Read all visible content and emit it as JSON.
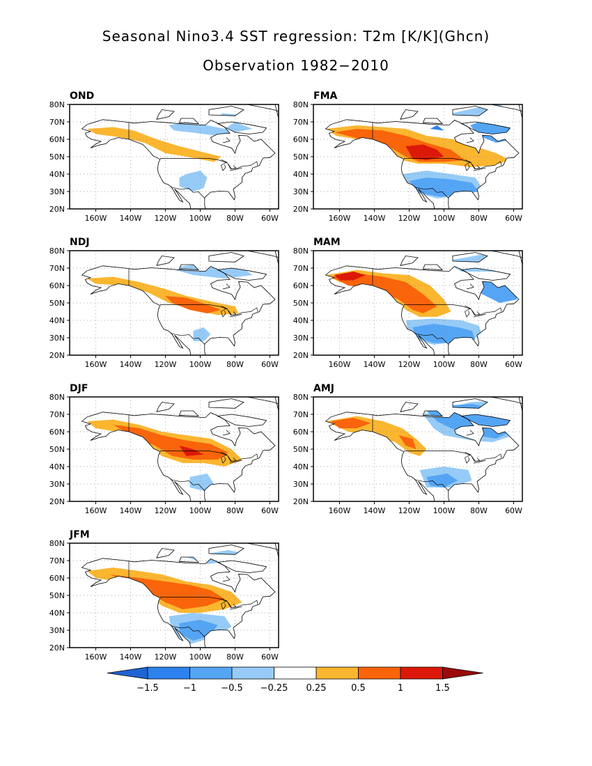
{
  "title_line1": "Seasonal Nino3.4 SST regression: T2m [K/K](Ghcn)",
  "title_line2": "Observation 1982−2010",
  "lat_ticks": [
    "20N",
    "30N",
    "40N",
    "50N",
    "60N",
    "70N",
    "80N"
  ],
  "lon_ticks": [
    "160W",
    "140W",
    "120W",
    "100W",
    "80W",
    "60W"
  ],
  "colorbar": {
    "labels": [
      "−1.5",
      "−1",
      "−0.5",
      "−0.25",
      "0.25",
      "0.5",
      "1",
      "1.5"
    ],
    "colors": [
      "#1e64d2",
      "#2d82ee",
      "#55a5f5",
      "#96cbf7",
      "#ffffff",
      "#fbb630",
      "#fa640a",
      "#dc1908",
      "#9b0a0a"
    ]
  },
  "chart_data": {
    "type": "heatmap",
    "colorbar_levels": [
      -1.5,
      -1,
      -0.5,
      -0.25,
      0.25,
      0.5,
      1,
      1.5
    ],
    "lon_range": [
      "175W",
      "55W"
    ],
    "lat_range": [
      "20N",
      "80N"
    ],
    "panels": [
      {
        "season": "OND",
        "summary": {
          "warm_northwest": "0.25 to 0.5",
          "cold_southern_plains": "-0.25 to -0.5",
          "cold_northern_canada": "-0.25 to -0.5"
        }
      },
      {
        "season": "FMA",
        "summary": {
          "warm_western_canada": "0.5 to 1.5",
          "cold_southern_us": "-0.25 to -1",
          "cold_northeast_canada": "-0.25 to -1"
        }
      },
      {
        "season": "NDJ",
        "summary": {
          "warm_central_canada_great_lakes": "0.25 to 1",
          "cold_southern_us": "-0.25 to -0.5"
        }
      },
      {
        "season": "MAM",
        "summary": {
          "warm_alaska_western_canada": "0.5 to 1.5",
          "cold_southern_us": "-0.25 to -1",
          "cold_labrador": "-0.25 to -1"
        }
      },
      {
        "season": "DJF",
        "summary": {
          "warm_central_canada": "0.5 to 1.5",
          "cold_southern_us": "-0.25 to -0.5"
        }
      },
      {
        "season": "AMJ",
        "summary": {
          "warm_alaska_yukon": "0.5 to 1.5",
          "cold_eastern_canada": "-0.25 to -1",
          "cold_southern_us": "-0.25 to -1"
        }
      },
      {
        "season": "JFM",
        "summary": {
          "warm_central_canada_north_us": "0.5 to 1",
          "cold_southern_us": "-0.25 to -1"
        }
      }
    ]
  }
}
